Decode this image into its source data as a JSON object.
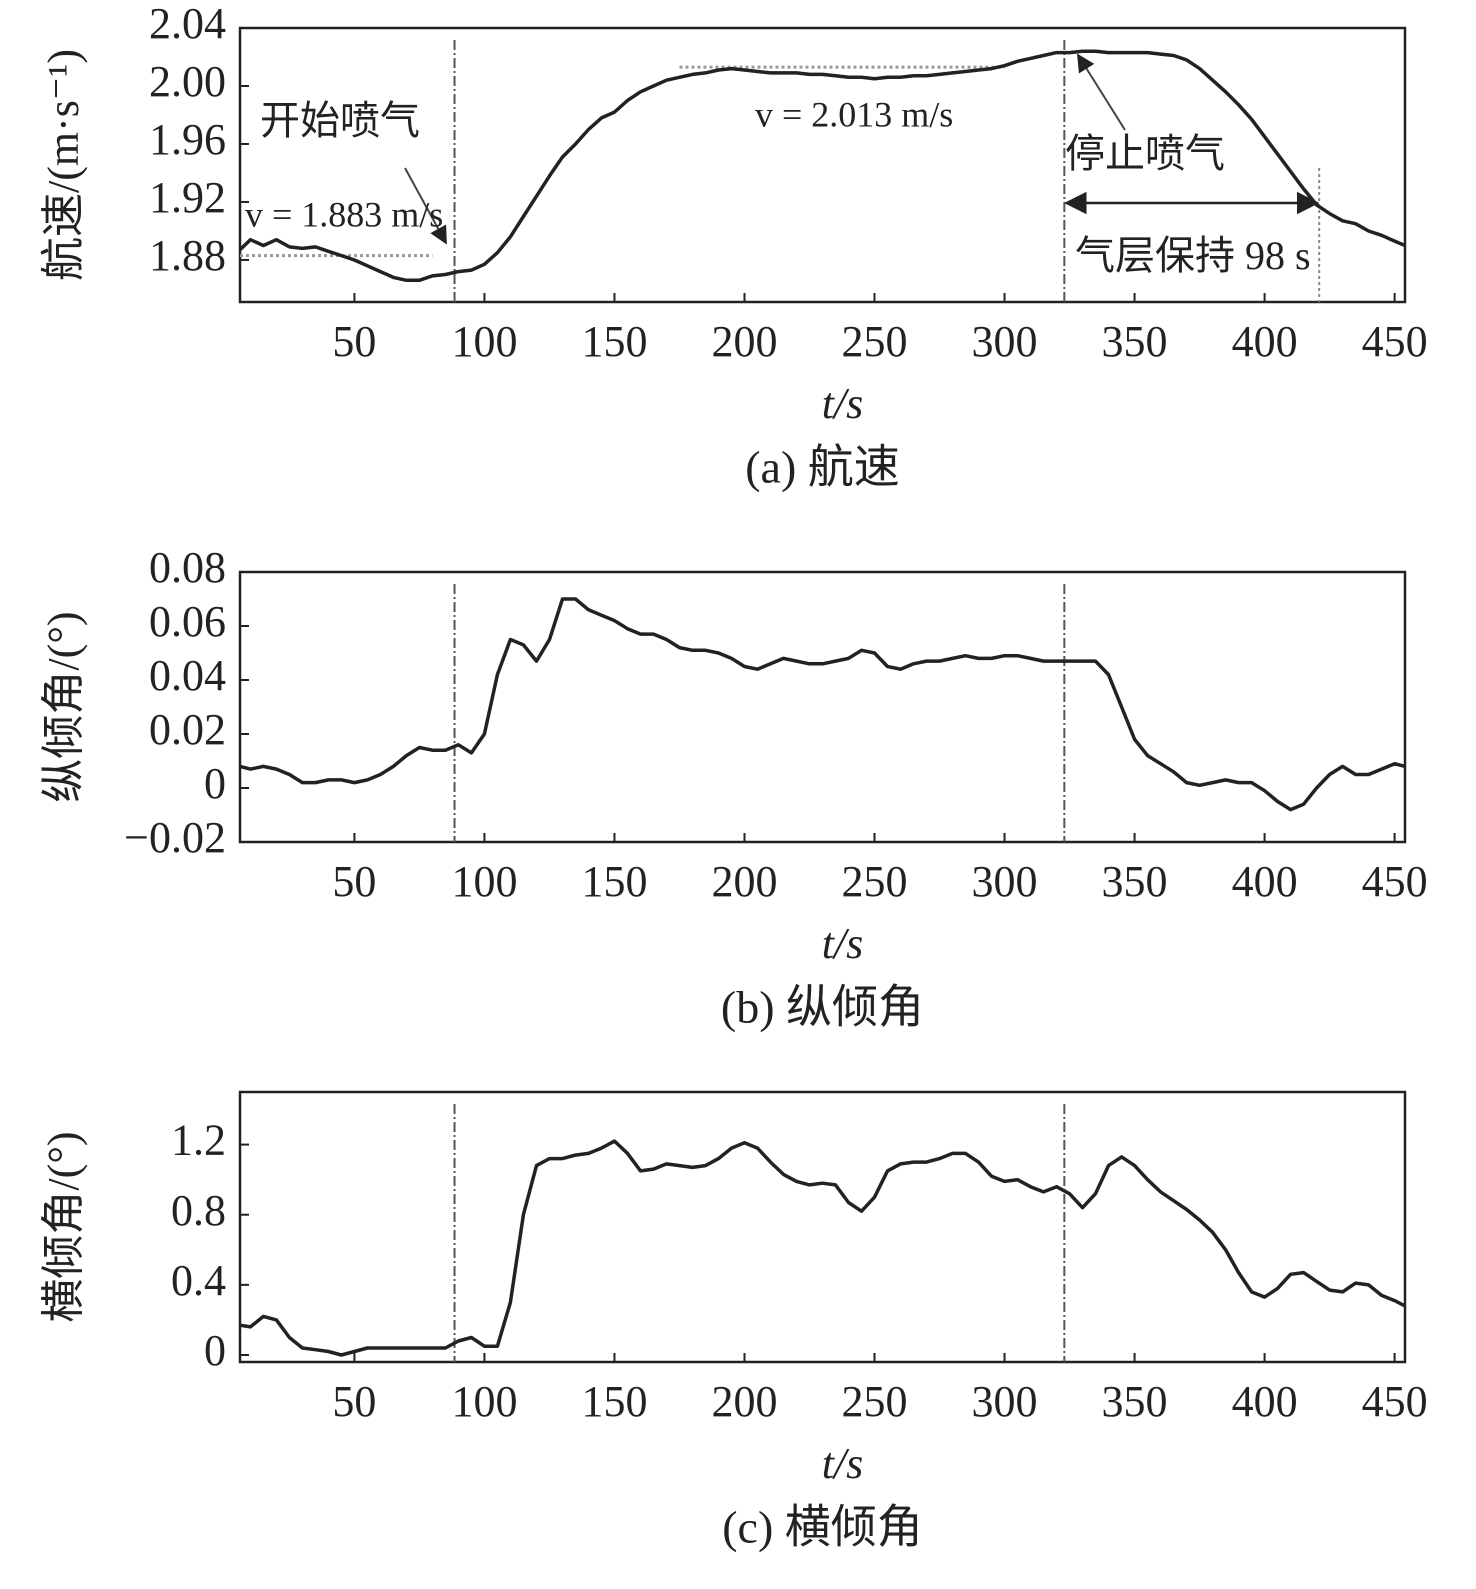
{
  "chart_data": [
    {
      "type": "line",
      "caption": "(a) 航速",
      "xlabel": "t/s",
      "ylabel": "航速/(m·s⁻¹)",
      "xlim": [
        6,
        454
      ],
      "xticks": [
        50,
        100,
        150,
        200,
        250,
        300,
        350,
        400,
        450
      ],
      "ylim": [
        1.851,
        2.04
      ],
      "yticks": [
        {
          "value": 1.88,
          "label": "1.88"
        },
        1.92,
        1.96,
        {
          "value": 2,
          "label": "2.00"
        },
        2.04
      ],
      "vlines": [
        88.5,
        323
      ],
      "reference_lines": [
        {
          "value": 1.883,
          "x": [
            6,
            80
          ]
        },
        {
          "value": 2.013,
          "x": [
            175,
            300
          ]
        }
      ],
      "span": [
        323,
        421
      ],
      "annotations": [
        "开始喷气",
        "v = 1.883 m/s",
        "v = 2.013 m/s",
        "停止喷气",
        "气层保持 98 s"
      ],
      "x": [
        6,
        10,
        15,
        20,
        25,
        30,
        35,
        40,
        45,
        50,
        55,
        60,
        65,
        70,
        75,
        80,
        85,
        90,
        95,
        100,
        105,
        110,
        115,
        120,
        125,
        130,
        135,
        140,
        145,
        150,
        155,
        160,
        165,
        170,
        175,
        180,
        185,
        190,
        195,
        200,
        205,
        210,
        215,
        220,
        225,
        230,
        235,
        240,
        245,
        250,
        255,
        260,
        265,
        270,
        275,
        280,
        285,
        290,
        295,
        300,
        305,
        310,
        315,
        320,
        325,
        330,
        335,
        340,
        345,
        350,
        355,
        360,
        365,
        370,
        375,
        380,
        385,
        390,
        395,
        400,
        405,
        410,
        415,
        420,
        425,
        430,
        435,
        440,
        445,
        450,
        454
      ],
      "series": [
        {
          "color": "#222222",
          "values": [
            1.887,
            1.894,
            1.89,
            1.894,
            1.889,
            1.888,
            1.889,
            1.886,
            1.883,
            1.88,
            1.876,
            1.872,
            1.868,
            1.866,
            1.866,
            1.869,
            1.87,
            1.872,
            1.873,
            1.877,
            1.885,
            1.896,
            1.91,
            1.924,
            1.938,
            1.951,
            1.96,
            1.97,
            1.978,
            1.982,
            1.99,
            1.996,
            2.0,
            2.004,
            2.006,
            2.008,
            2.009,
            2.011,
            2.012,
            2.011,
            2.01,
            2.009,
            2.009,
            2.009,
            2.008,
            2.008,
            2.007,
            2.006,
            2.006,
            2.005,
            2.006,
            2.006,
            2.007,
            2.007,
            2.008,
            2.009,
            2.01,
            2.011,
            2.012,
            2.014,
            2.017,
            2.019,
            2.021,
            2.023,
            2.023,
            2.024,
            2.024,
            2.023,
            2.023,
            2.023,
            2.023,
            2.022,
            2.021,
            2.018,
            2.012,
            2.004,
            1.996,
            1.987,
            1.977,
            1.965,
            1.953,
            1.941,
            1.929,
            1.918,
            1.912,
            1.907,
            1.905,
            1.9,
            1.897,
            1.893,
            1.89
          ]
        }
      ]
    },
    {
      "type": "line",
      "caption": "(b) 纵倾角",
      "xlabel": "t/s",
      "ylabel": "纵倾角/(°)",
      "xlim": [
        6,
        454
      ],
      "xticks": [
        50,
        100,
        150,
        200,
        250,
        300,
        350,
        400,
        450
      ],
      "ylim": [
        -0.02,
        0.08
      ],
      "yticks": [
        {
          "value": -0.02,
          "label": "−0.02"
        },
        0,
        0.02,
        0.04,
        0.06,
        0.08
      ],
      "vlines": [
        88.5,
        323
      ],
      "x": [
        6,
        10,
        15,
        20,
        25,
        30,
        35,
        40,
        45,
        50,
        55,
        60,
        65,
        70,
        75,
        80,
        85,
        90,
        95,
        100,
        105,
        110,
        115,
        120,
        125,
        130,
        135,
        140,
        145,
        150,
        155,
        160,
        165,
        170,
        175,
        180,
        185,
        190,
        195,
        200,
        205,
        210,
        215,
        220,
        225,
        230,
        235,
        240,
        245,
        250,
        255,
        260,
        265,
        270,
        275,
        280,
        285,
        290,
        295,
        300,
        305,
        310,
        315,
        320,
        325,
        330,
        335,
        340,
        345,
        350,
        355,
        360,
        365,
        370,
        375,
        380,
        385,
        390,
        395,
        400,
        405,
        410,
        415,
        420,
        425,
        430,
        435,
        440,
        445,
        450,
        454
      ],
      "series": [
        {
          "color": "#222222",
          "values": [
            0.008,
            0.007,
            0.008,
            0.007,
            0.005,
            0.002,
            0.002,
            0.003,
            0.003,
            0.002,
            0.003,
            0.005,
            0.008,
            0.012,
            0.015,
            0.014,
            0.014,
            0.016,
            0.013,
            0.02,
            0.042,
            0.055,
            0.053,
            0.047,
            0.055,
            0.07,
            0.07,
            0.066,
            0.064,
            0.062,
            0.059,
            0.057,
            0.057,
            0.055,
            0.052,
            0.051,
            0.051,
            0.05,
            0.048,
            0.045,
            0.044,
            0.046,
            0.048,
            0.047,
            0.046,
            0.046,
            0.047,
            0.048,
            0.051,
            0.05,
            0.045,
            0.044,
            0.046,
            0.047,
            0.047,
            0.048,
            0.049,
            0.048,
            0.048,
            0.049,
            0.049,
            0.048,
            0.047,
            0.047,
            0.047,
            0.047,
            0.047,
            0.042,
            0.03,
            0.018,
            0.012,
            0.009,
            0.006,
            0.002,
            0.001,
            0.002,
            0.003,
            0.002,
            0.002,
            -0.001,
            -0.005,
            -0.008,
            -0.006,
            0.0,
            0.005,
            0.008,
            0.005,
            0.005,
            0.007,
            0.009,
            0.008
          ]
        }
      ]
    },
    {
      "type": "line",
      "caption": "(c) 横倾角",
      "xlabel": "t/s",
      "ylabel": "横倾角/(°)",
      "xlim": [
        6,
        454
      ],
      "xticks": [
        50,
        100,
        150,
        200,
        250,
        300,
        350,
        400,
        450
      ],
      "ylim": [
        -0.04,
        1.5
      ],
      "yticks": [
        0,
        0.4,
        0.8,
        1.2
      ],
      "vlines": [
        88.5,
        323
      ],
      "x": [
        6,
        10,
        15,
        20,
        25,
        30,
        35,
        40,
        45,
        50,
        55,
        60,
        65,
        70,
        75,
        80,
        85,
        90,
        95,
        100,
        105,
        110,
        115,
        120,
        125,
        130,
        135,
        140,
        145,
        150,
        155,
        160,
        165,
        170,
        175,
        180,
        185,
        190,
        195,
        200,
        205,
        210,
        215,
        220,
        225,
        230,
        235,
        240,
        245,
        250,
        255,
        260,
        265,
        270,
        275,
        280,
        285,
        290,
        295,
        300,
        305,
        310,
        315,
        320,
        325,
        330,
        335,
        340,
        345,
        350,
        355,
        360,
        365,
        370,
        375,
        380,
        385,
        390,
        395,
        400,
        405,
        410,
        415,
        420,
        425,
        430,
        435,
        440,
        445,
        450,
        454
      ],
      "series": [
        {
          "color": "#222222",
          "values": [
            0.17,
            0.16,
            0.22,
            0.2,
            0.1,
            0.04,
            0.03,
            0.02,
            0.0,
            0.02,
            0.04,
            0.04,
            0.04,
            0.04,
            0.04,
            0.04,
            0.04,
            0.08,
            0.1,
            0.05,
            0.05,
            0.3,
            0.8,
            1.08,
            1.12,
            1.12,
            1.14,
            1.15,
            1.18,
            1.22,
            1.15,
            1.05,
            1.06,
            1.09,
            1.08,
            1.07,
            1.08,
            1.12,
            1.18,
            1.21,
            1.18,
            1.1,
            1.03,
            0.99,
            0.97,
            0.98,
            0.97,
            0.87,
            0.82,
            0.9,
            1.05,
            1.09,
            1.1,
            1.1,
            1.12,
            1.15,
            1.15,
            1.1,
            1.02,
            0.99,
            1.0,
            0.96,
            0.93,
            0.96,
            0.92,
            0.84,
            0.92,
            1.08,
            1.13,
            1.08,
            1.0,
            0.93,
            0.88,
            0.83,
            0.77,
            0.7,
            0.6,
            0.47,
            0.36,
            0.33,
            0.38,
            0.46,
            0.47,
            0.42,
            0.37,
            0.36,
            0.41,
            0.4,
            0.34,
            0.31,
            0.28
          ]
        }
      ]
    }
  ]
}
